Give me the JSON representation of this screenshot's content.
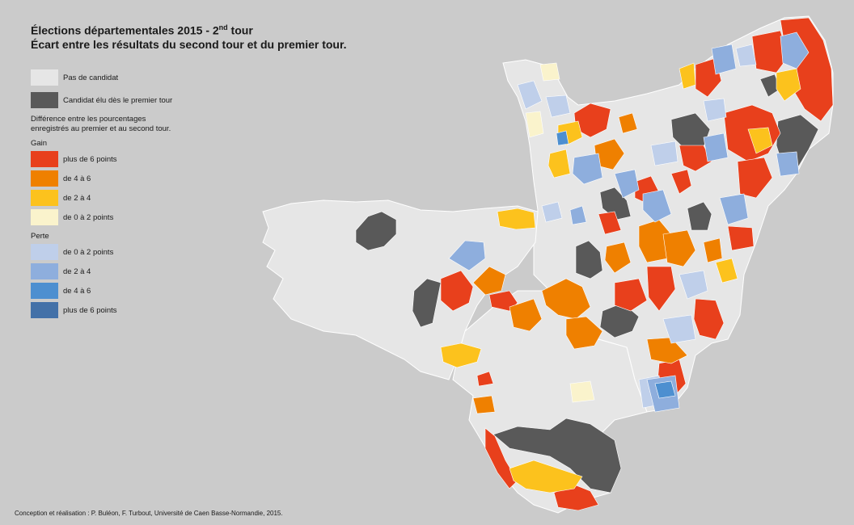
{
  "title": {
    "line1_main": "Élections départementales 2015 - 2",
    "line1_sup": "nd",
    "line1_end": " tour",
    "line2": "Écart entre les résultats du second tour et du premier tour."
  },
  "legend": {
    "no_candidate": {
      "label": "Pas de candidat",
      "color": "#e6e6e6"
    },
    "elected_first_round": {
      "label": "Candidat élu dès le premier tour",
      "color": "#595959"
    },
    "note": [
      "Différence entre les pourcentages",
      "enregistrés au premier et au second tour."
    ],
    "gain_title": "Gain",
    "gain": [
      {
        "label": "plus de 6 points",
        "color": "#e8401c"
      },
      {
        "label": "de 4 à 6",
        "color": "#ef8000"
      },
      {
        "label": "de 2 à 4",
        "color": "#fcc21d"
      },
      {
        "label": "de 0 à 2 points",
        "color": "#faf3cc"
      }
    ],
    "loss_title": "Perte",
    "loss": [
      {
        "label": "de 0 à 2 points",
        "color": "#bfcfea"
      },
      {
        "label": "de 2 à 4",
        "color": "#8eaedd"
      },
      {
        "label": "de 4 à 6",
        "color": "#4d8fd0"
      },
      {
        "label": "plus de 6 points",
        "color": "#4371a8"
      }
    ]
  },
  "credit": "Conception et réalisation : P. Buléon, F. Turbout, Université de Caen Basse-Normandie, 2015.",
  "map": {
    "background_color": "#cbcbcb",
    "region_color": "#e6e6e6",
    "border_color": "#ffffff"
  }
}
